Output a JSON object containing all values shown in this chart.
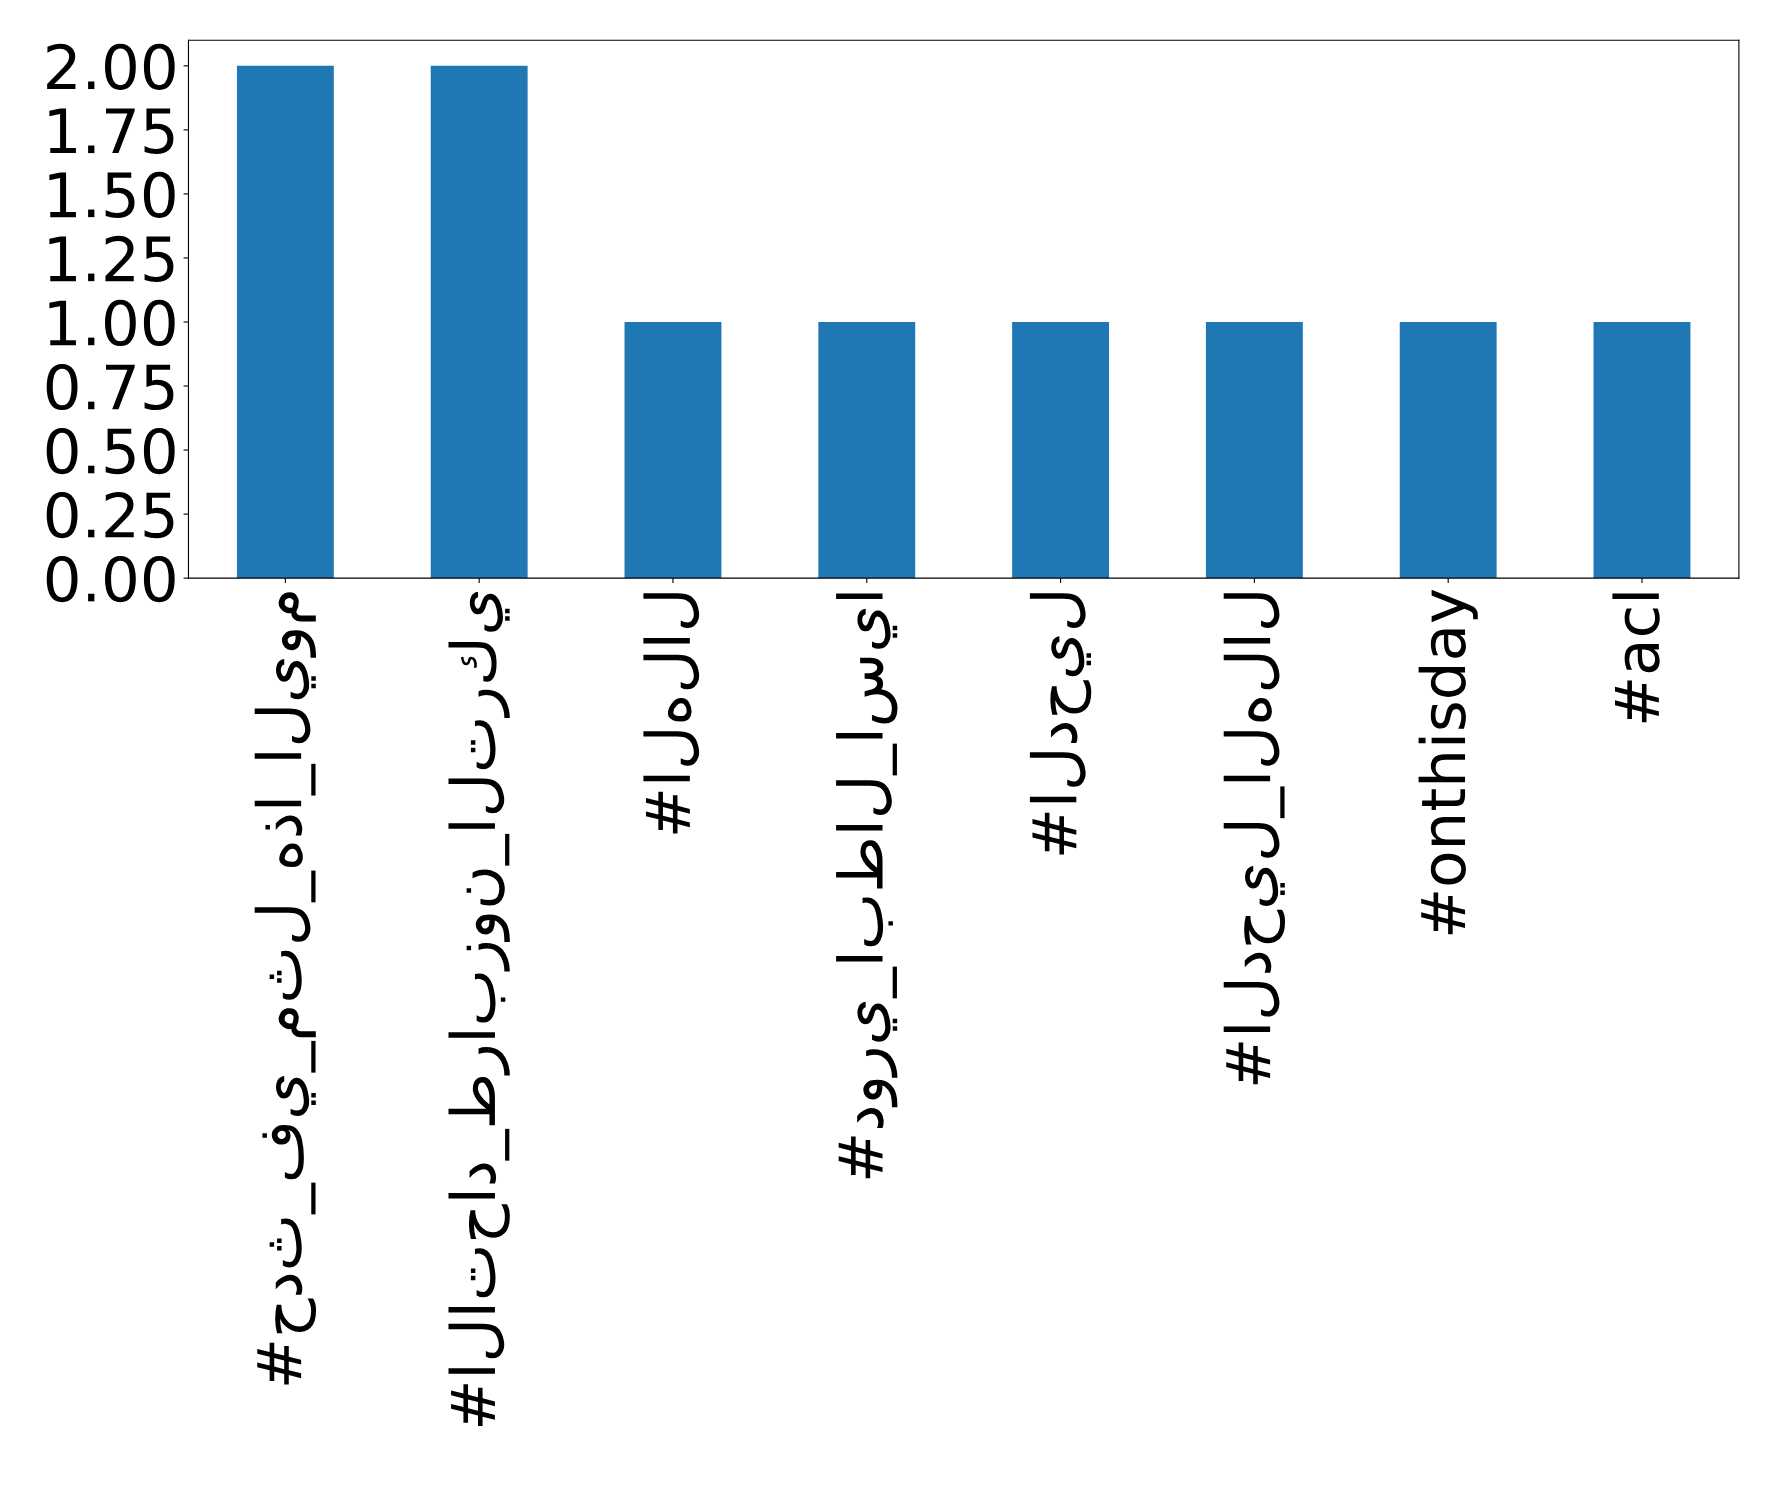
{
  "chart_data": {
    "type": "bar",
    "categories": [
      "#حدث_في_مثل_هذا_اليوم",
      "#الاتحاد_طرابزون_التركي",
      "#الهلال",
      "#دوري_ابطال_اسيا",
      "#الدحيل",
      "#الدحيل_الهلال",
      "#onthisday",
      "#acl"
    ],
    "values": [
      2,
      2,
      1,
      1,
      1,
      1,
      1,
      1
    ],
    "color": "#1f77b4",
    "ylim": [
      0,
      2.1
    ],
    "yticks": [
      {
        "value": 0,
        "label": "0.00"
      },
      {
        "value": 0.25,
        "label": "0.25"
      },
      {
        "value": 0.5,
        "label": "0.50"
      },
      {
        "value": 0.75,
        "label": "0.75"
      },
      {
        "value": 1,
        "label": "1.00"
      },
      {
        "value": 1.25,
        "label": "1.25"
      },
      {
        "value": 1.5,
        "label": "1.50"
      },
      {
        "value": 1.75,
        "label": "1.75"
      },
      {
        "value": 2,
        "label": "2.00"
      }
    ],
    "grid": false,
    "legend": false
  }
}
